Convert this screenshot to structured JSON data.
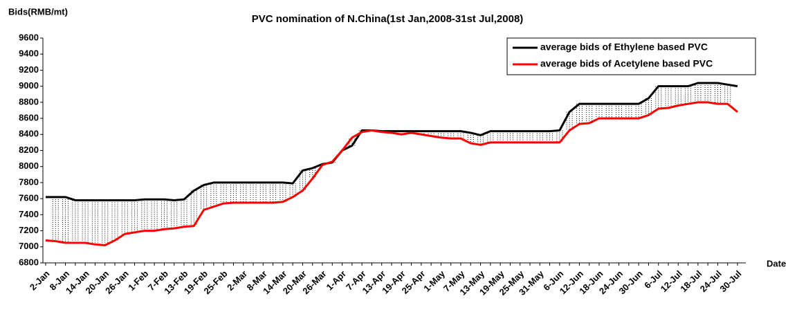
{
  "chart_data": {
    "type": "line",
    "title": "PVC nomination of N.China(1st Jan,2008-31st Jul,2008)",
    "y_label": "Bids(RMB/mt)",
    "x_label": "Date",
    "categories": [
      "2-Jan",
      null,
      "8-Jan",
      null,
      "14-Jan",
      null,
      "20-Jan",
      null,
      "26-Jan",
      null,
      "1-Feb",
      null,
      "7-Feb",
      null,
      "13-Feb",
      null,
      "19-Feb",
      null,
      "25-Feb",
      null,
      "2-Mar",
      null,
      "8-Mar",
      null,
      "14-Mar",
      null,
      "20-Mar",
      null,
      "26-Mar",
      null,
      "1-Apr",
      null,
      "7-Apr",
      null,
      "13-Apr",
      null,
      "19-Apr",
      null,
      "25-Apr",
      null,
      "1-May",
      null,
      "7-May",
      null,
      "13-May",
      null,
      "19-May",
      null,
      "25-May",
      null,
      "31-May",
      null,
      "6-Jun",
      null,
      "12-Jun",
      null,
      "18-Jun",
      null,
      "24-Jun",
      null,
      "30-Jun",
      null,
      "6-Jul",
      null,
      "12-Jul",
      null,
      "18-Jul",
      null,
      "24-Jul",
      null,
      "30-Jul"
    ],
    "series": [
      {
        "name": "average bids of Ethylene based PVC",
        "color": "#000000",
        "values": [
          7620,
          7620,
          7620,
          7580,
          7580,
          7580,
          7580,
          7580,
          7580,
          7580,
          7590,
          7590,
          7590,
          7580,
          7590,
          7700,
          7770,
          7800,
          7800,
          7800,
          7800,
          7800,
          7800,
          7800,
          7800,
          7790,
          7950,
          7980,
          8030,
          8050,
          8200,
          8260,
          8450,
          8450,
          8440,
          8440,
          8440,
          8440,
          8440,
          8440,
          8440,
          8440,
          8440,
          8420,
          8390,
          8440,
          8440,
          8440,
          8440,
          8440,
          8440,
          8440,
          8450,
          8680,
          8780,
          8780,
          8780,
          8780,
          8780,
          8780,
          8780,
          8850,
          9000,
          9000,
          9000,
          9000,
          9040,
          9040,
          9040,
          9020,
          9000
        ]
      },
      {
        "name": "average bids of Acetylene based PVC",
        "color": "#ff0000",
        "values": [
          7080,
          7070,
          7050,
          7050,
          7050,
          7030,
          7020,
          7080,
          7160,
          7180,
          7200,
          7200,
          7220,
          7230,
          7250,
          7260,
          7460,
          7500,
          7540,
          7550,
          7550,
          7550,
          7550,
          7550,
          7560,
          7620,
          7700,
          7850,
          8020,
          8060,
          8200,
          8360,
          8430,
          8450,
          8430,
          8420,
          8400,
          8420,
          8400,
          8380,
          8360,
          8350,
          8350,
          8290,
          8270,
          8300,
          8300,
          8300,
          8300,
          8300,
          8300,
          8300,
          8300,
          8450,
          8530,
          8540,
          8600,
          8600,
          8600,
          8600,
          8600,
          8640,
          8720,
          8730,
          8760,
          8780,
          8800,
          8800,
          8780,
          8780,
          8680
        ]
      }
    ],
    "ylim": [
      6800,
      9600
    ],
    "yticks": [
      6800,
      7000,
      7200,
      7400,
      7600,
      7800,
      8000,
      8200,
      8400,
      8600,
      8800,
      9000,
      9200,
      9400,
      9600
    ],
    "legend": "upper right"
  }
}
